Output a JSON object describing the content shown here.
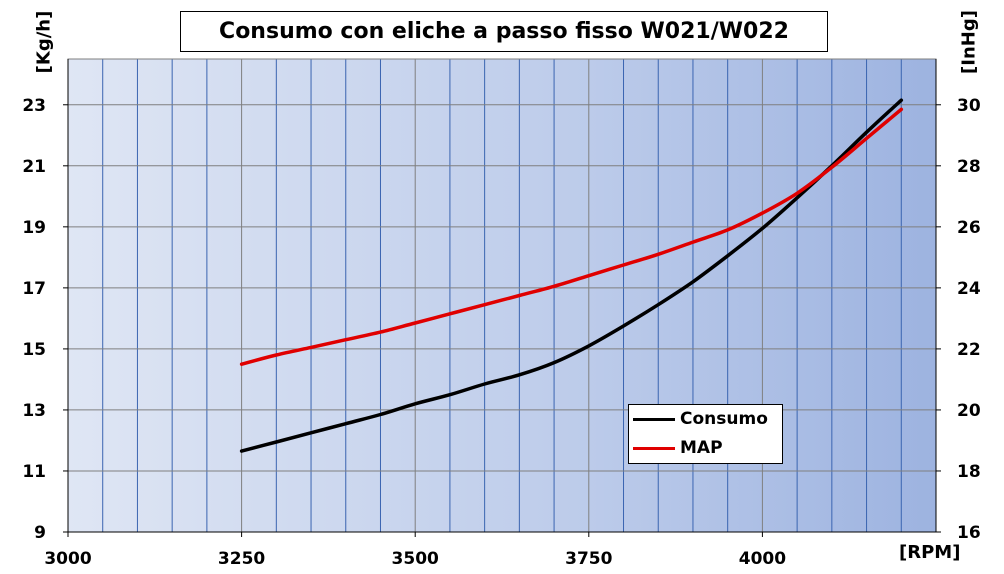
{
  "chart_data": {
    "type": "line",
    "title": "Consumo con eliche a passo fisso W021/W022",
    "xlabel": "[RPM]",
    "ylabel_left": "[Kg/h]",
    "ylabel_right": "[InHg]",
    "xlim": [
      3000,
      4250
    ],
    "ylim_left": [
      9,
      24.5
    ],
    "ylim_right": [
      16,
      31.5
    ],
    "x_ticks": [
      3000,
      3250,
      3500,
      3750,
      4000
    ],
    "y_ticks_left": [
      9,
      11,
      13,
      15,
      17,
      19,
      21,
      23
    ],
    "y_ticks_right": [
      16,
      18,
      20,
      22,
      24,
      26,
      28,
      30
    ],
    "grid": true,
    "legend_position": "bottom-right",
    "series": [
      {
        "name": "Consumo",
        "axis": "left",
        "color": "#000000",
        "x": [
          3250,
          3300,
          3350,
          3400,
          3450,
          3500,
          3550,
          3600,
          3650,
          3700,
          3750,
          3800,
          3850,
          3900,
          3950,
          4000,
          4050,
          4100,
          4150,
          4200
        ],
        "y": [
          11.65,
          11.95,
          12.25,
          12.55,
          12.85,
          13.2,
          13.5,
          13.85,
          14.15,
          14.55,
          15.1,
          15.75,
          16.45,
          17.2,
          18.05,
          18.95,
          19.95,
          21.0,
          22.1,
          23.15
        ]
      },
      {
        "name": "MAP",
        "axis": "right",
        "color": "#e00000",
        "x": [
          3250,
          3300,
          3350,
          3400,
          3450,
          3500,
          3550,
          3600,
          3650,
          3700,
          3750,
          3800,
          3850,
          3900,
          3950,
          4000,
          4050,
          4100,
          4150,
          4200
        ],
        "y": [
          21.5,
          21.8,
          22.05,
          22.3,
          22.55,
          22.85,
          23.15,
          23.45,
          23.75,
          24.05,
          24.4,
          24.75,
          25.1,
          25.5,
          25.9,
          26.45,
          27.1,
          27.95,
          28.9,
          29.85
        ]
      }
    ]
  }
}
